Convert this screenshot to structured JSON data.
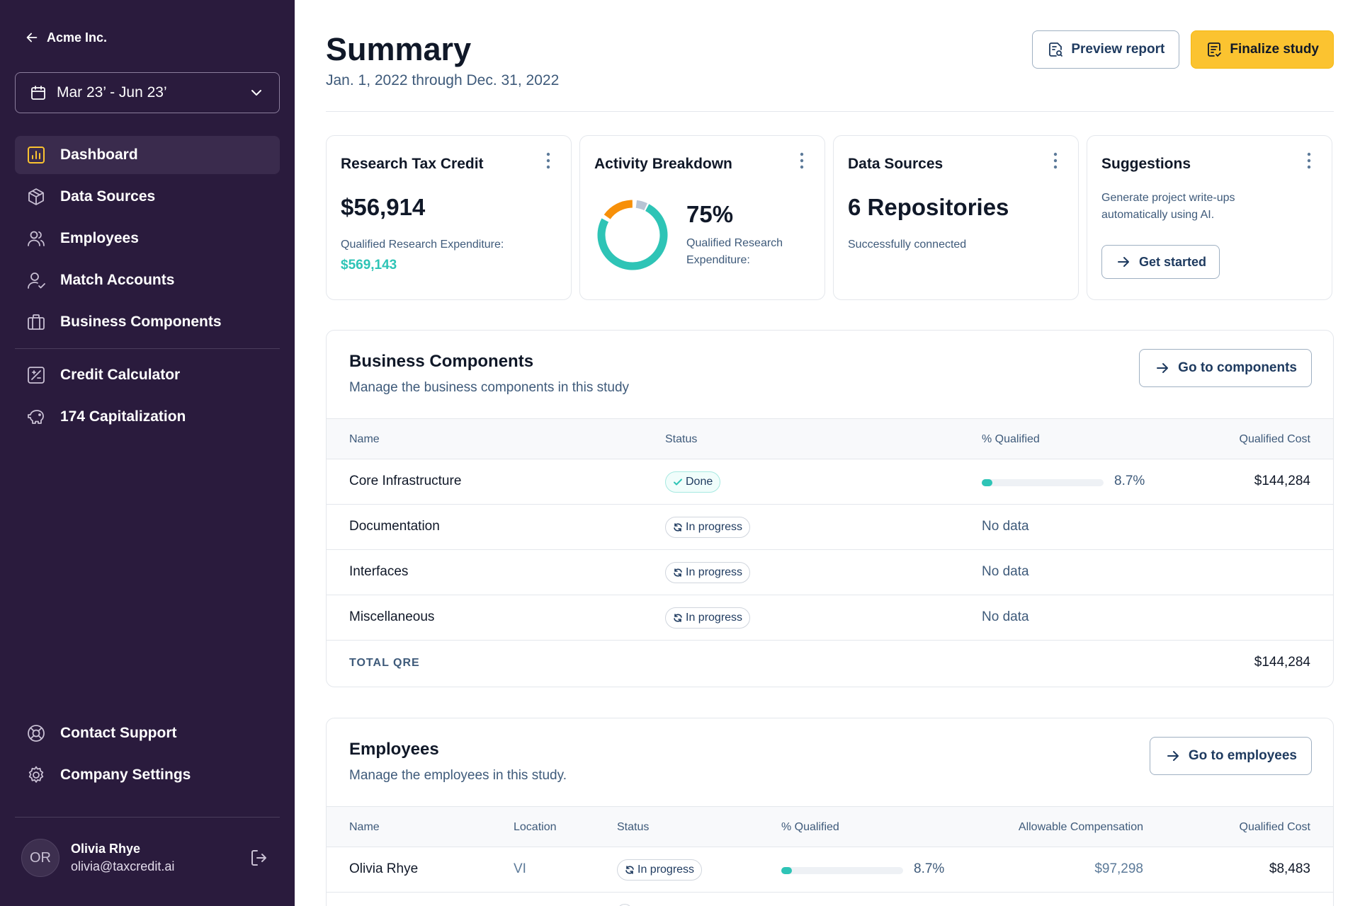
{
  "sidebar": {
    "company": "Acme Inc.",
    "date_range": "Mar 23’ - Jun 23’",
    "nav_main": [
      {
        "label": "Dashboard",
        "icon": "chart-icon",
        "active": true
      },
      {
        "label": "Data Sources",
        "icon": "cube-icon"
      },
      {
        "label": "Employees",
        "icon": "users-icon"
      },
      {
        "label": "Match Accounts",
        "icon": "user-check-icon"
      },
      {
        "label": "Business Components",
        "icon": "briefcase-icon"
      }
    ],
    "nav_tools": [
      {
        "label": "Credit Calculator",
        "icon": "calculator-icon"
      },
      {
        "label": "174 Capitalization",
        "icon": "piggy-bank-icon"
      }
    ],
    "nav_bottom": [
      {
        "label": "Contact Support",
        "icon": "life-buoy-icon"
      },
      {
        "label": "Company Settings",
        "icon": "gear-icon"
      }
    ],
    "user": {
      "initials": "OR",
      "name": "Olivia Rhye",
      "email": "olivia@taxcredit.ai"
    }
  },
  "header": {
    "title": "Summary",
    "subtitle": "Jan. 1, 2022 through Dec. 31, 2022",
    "preview_label": "Preview report",
    "finalize_label": "Finalize study"
  },
  "cards": {
    "tax_credit": {
      "title": "Research Tax Credit",
      "value": "$56,914",
      "label": "Qualified Research Expenditure:",
      "sub_value": "$569,143"
    },
    "activity": {
      "title": "Activity Breakdown",
      "value": "75%",
      "label": "Qualified Research Expenditure:",
      "donut": {
        "teal": 0.75,
        "orange": 0.15,
        "gray": 0.05
      }
    },
    "data_sources": {
      "title": "Data Sources",
      "value": "6 Repositories",
      "label": "Successfully connected"
    },
    "suggestions": {
      "title": "Suggestions",
      "label": "Generate project write-ups automatically using AI.",
      "button": "Get started"
    }
  },
  "business_components": {
    "title": "Business Components",
    "subtitle": "Manage the business components in this study",
    "button": "Go to components",
    "columns": [
      "Name",
      "Status",
      "% Qualified",
      "Qualified Cost"
    ],
    "rows": [
      {
        "name": "Core Infrastructure",
        "status": "Done",
        "qualified": "8.7%",
        "qualified_value": 0.087,
        "cost": "$144,284"
      },
      {
        "name": "Documentation",
        "status": "In progress",
        "qualified": "No data",
        "cost": ""
      },
      {
        "name": "Interfaces",
        "status": "In progress",
        "qualified": "No data",
        "cost": ""
      },
      {
        "name": "Miscellaneous",
        "status": "In progress",
        "qualified": "No data",
        "cost": ""
      }
    ],
    "total_label": "TOTAL QRE",
    "total_value": "$144,284"
  },
  "employees": {
    "title": "Employees",
    "subtitle": "Manage the employees in this study.",
    "button": "Go to employees",
    "columns": [
      "Name",
      "Location",
      "Status",
      "% Qualified",
      "Allowable Compensation",
      "Qualified Cost"
    ],
    "rows": [
      {
        "name": "Olivia Rhye",
        "location": "VI",
        "status": "In progress",
        "qualified": "8.7%",
        "qualified_value": 0.087,
        "compensation": "$97,298",
        "cost": "$8,483"
      }
    ]
  },
  "colors": {
    "sidebar": "#2a1b3d",
    "accent_yellow": "#fbc330",
    "teal": "#2ec4b6",
    "orange": "#f79009"
  }
}
